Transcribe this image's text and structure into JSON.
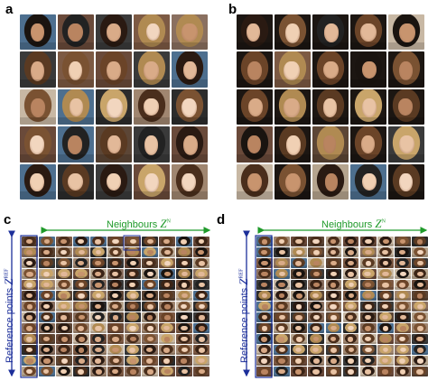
{
  "panels": {
    "a": {
      "letter": "a"
    },
    "b": {
      "letter": "b"
    },
    "c": {
      "letter": "c",
      "neighbours_label": "Neighbours",
      "neighbours_symbol": "Z",
      "neighbours_sup": "N",
      "reference_label": "Reference points",
      "reference_symbol": "Z",
      "reference_sup": "REF"
    },
    "d": {
      "letter": "d",
      "neighbours_label": "Neighbours",
      "neighbours_symbol": "Z",
      "neighbours_sup": "N",
      "reference_label": "Reference points",
      "reference_symbol": "Z",
      "reference_sup": "REF"
    }
  },
  "colors": {
    "neighbours_arrow": "#1f9a2a",
    "reference_arrow": "#1c2f9a",
    "highlight_box": "#1c2f9a"
  }
}
